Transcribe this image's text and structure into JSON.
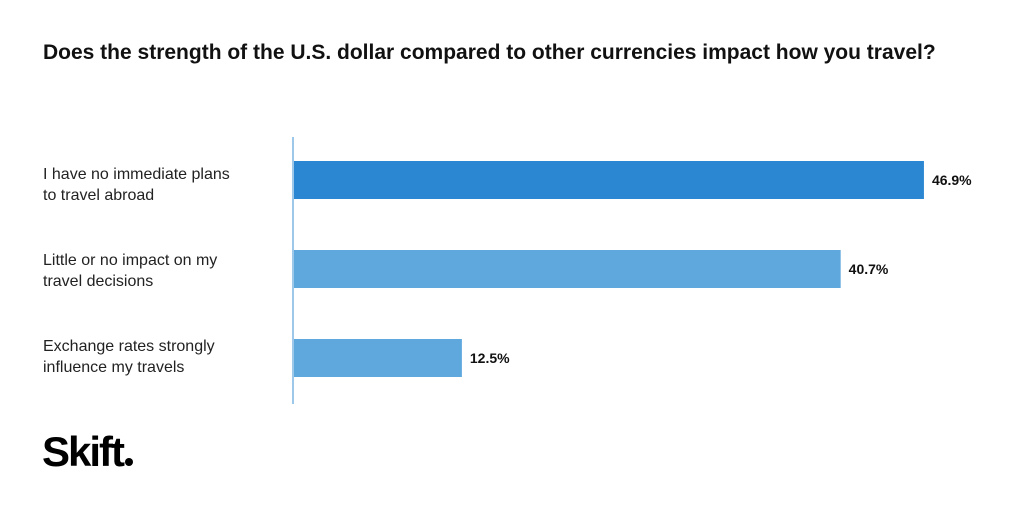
{
  "chart_data": {
    "type": "bar",
    "orientation": "horizontal",
    "title": "Does the strength of the U.S. dollar compared to other currencies impact how you travel?",
    "categories": [
      "I have no immediate plans\nto travel abroad",
      "Little or no impact on my\ntravel decisions",
      "Exchange rates strongly\ninfluence my travels"
    ],
    "values": [
      46.9,
      40.7,
      12.5
    ],
    "value_labels": [
      "46.9%",
      "40.7%",
      "12.5%"
    ],
    "bar_colors": [
      "#2b87d1",
      "#5ea8de",
      "#5ea8de"
    ],
    "axis_color": "#9ec8ea",
    "xlim": [
      0,
      47.5
    ],
    "grid": false,
    "legend": "none"
  },
  "brand": {
    "logo_text": "Skift"
  }
}
